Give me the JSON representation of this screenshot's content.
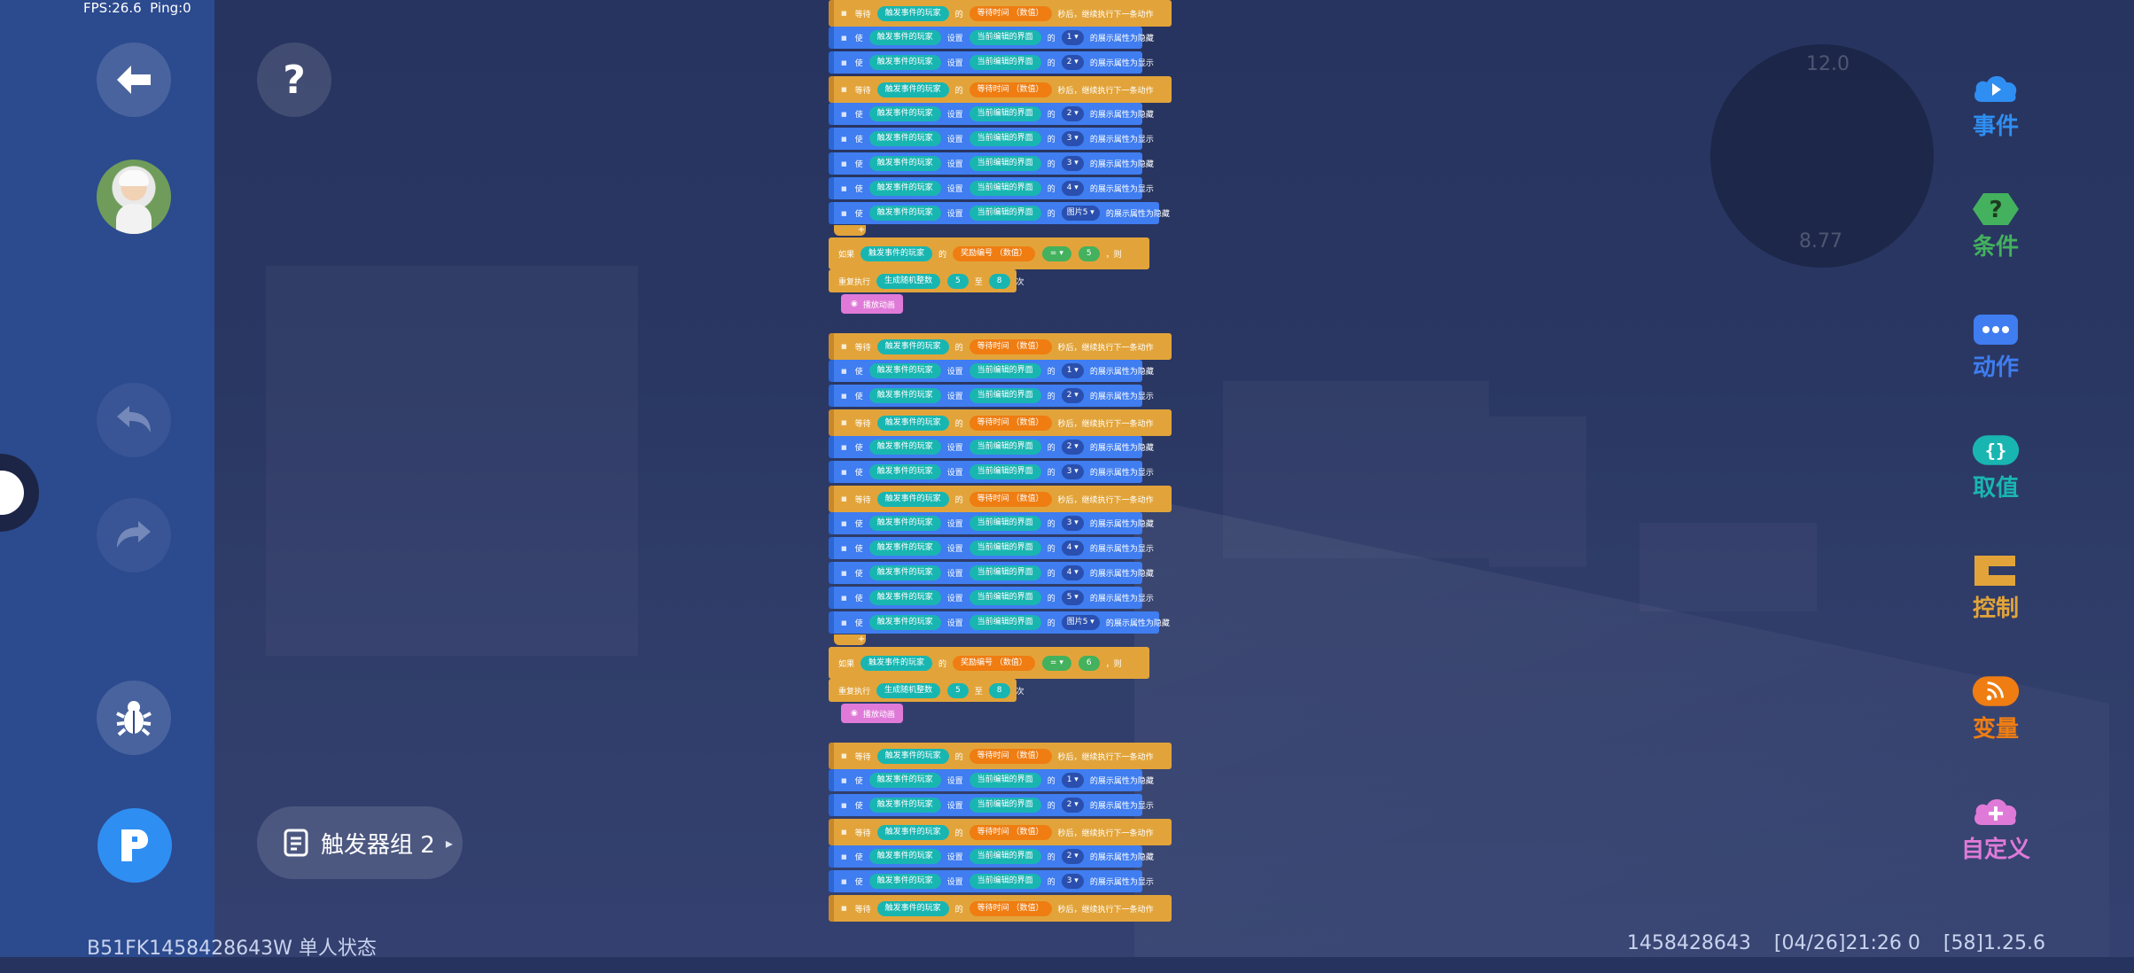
{
  "debug": {
    "fps_label": "FPS:26.6  Ping:0"
  },
  "toolbar": {
    "help_label": "?"
  },
  "trigger_group": {
    "label": "触发器组 2",
    "caret": "▸"
  },
  "status": {
    "left": "B51FK1458428643W 单人状态",
    "id": "1458428643",
    "time": "[04/26]21:26 0",
    "version": "[58]1.25.6"
  },
  "minimap": {
    "top_value": "12.0",
    "bottom_value": "8.77"
  },
  "categories": [
    {
      "label": "事件",
      "color": "#2f8ef2",
      "icon": "video-icon"
    },
    {
      "label": "条件",
      "color": "#43b15d",
      "icon": "question-icon"
    },
    {
      "label": "动作",
      "color": "#3f7df0",
      "icon": "dots-icon"
    },
    {
      "label": "取值",
      "color": "#19b6b1",
      "icon": "braces-icon"
    },
    {
      "label": "控制",
      "color": "#e2a43a",
      "icon": "control-icon"
    },
    {
      "label": "变量",
      "color": "#ef7d12",
      "icon": "rss-icon"
    },
    {
      "label": "自定义",
      "color": "#e07ad8",
      "icon": "cloud-plus-icon"
    }
  ],
  "blocks": {
    "wait": {
      "verb": "等待",
      "player": "触发事件的玩家",
      "of": "的",
      "field": "等待时间",
      "type": "（数值）",
      "suffix": "秒后，继续执行下一条动作"
    },
    "hide": {
      "verb": "使",
      "player": "触发事件的玩家",
      "set": "设置",
      "ui": "当前编辑的界面",
      "of": "的",
      "suffix": "的展示属性为隐藏"
    },
    "show": {
      "verb": "使",
      "player": "触发事件的玩家",
      "set": "设置",
      "ui": "当前编辑的界面",
      "of": "的",
      "suffix": "的展示属性为显示"
    },
    "if": {
      "verb": "如果",
      "player": "触发事件的玩家",
      "of": "的",
      "field": "奖励编号",
      "type": "（数值）",
      "op": "= ▾",
      "then": "，则"
    },
    "repeat": {
      "verb": "重复执行",
      "fn": "生成随机整数",
      "min": "5",
      "to": "至",
      "max": "8",
      "times": "次"
    },
    "anim": {
      "label": "播放动画"
    },
    "pic": "图片5"
  },
  "script_rows": [
    {
      "k": "wait"
    },
    {
      "k": "hide",
      "n": "1"
    },
    {
      "k": "show",
      "n": "2"
    },
    {
      "k": "wait"
    },
    {
      "k": "hide",
      "n": "2"
    },
    {
      "k": "show",
      "n": "3"
    },
    {
      "k": "hide",
      "n": "3"
    },
    {
      "k": "show",
      "n": "4"
    },
    {
      "k": "hidepic"
    },
    {
      "k": "if",
      "v": "5"
    },
    {
      "k": "repeat"
    },
    {
      "k": "anim"
    },
    {
      "k": "wait"
    },
    {
      "k": "hide",
      "n": "1"
    },
    {
      "k": "show",
      "n": "2"
    },
    {
      "k": "wait"
    },
    {
      "k": "hide",
      "n": "2"
    },
    {
      "k": "show",
      "n": "3"
    },
    {
      "k": "wait"
    },
    {
      "k": "hide",
      "n": "3"
    },
    {
      "k": "show",
      "n": "4"
    },
    {
      "k": "hide",
      "n": "4"
    },
    {
      "k": "show",
      "n": "5"
    },
    {
      "k": "hidepic"
    },
    {
      "k": "if",
      "v": "6"
    },
    {
      "k": "repeat"
    },
    {
      "k": "anim"
    },
    {
      "k": "wait"
    },
    {
      "k": "hide",
      "n": "1"
    },
    {
      "k": "show",
      "n": "2"
    },
    {
      "k": "wait"
    },
    {
      "k": "hide",
      "n": "2"
    },
    {
      "k": "show",
      "n": "3"
    },
    {
      "k": "wait"
    }
  ]
}
